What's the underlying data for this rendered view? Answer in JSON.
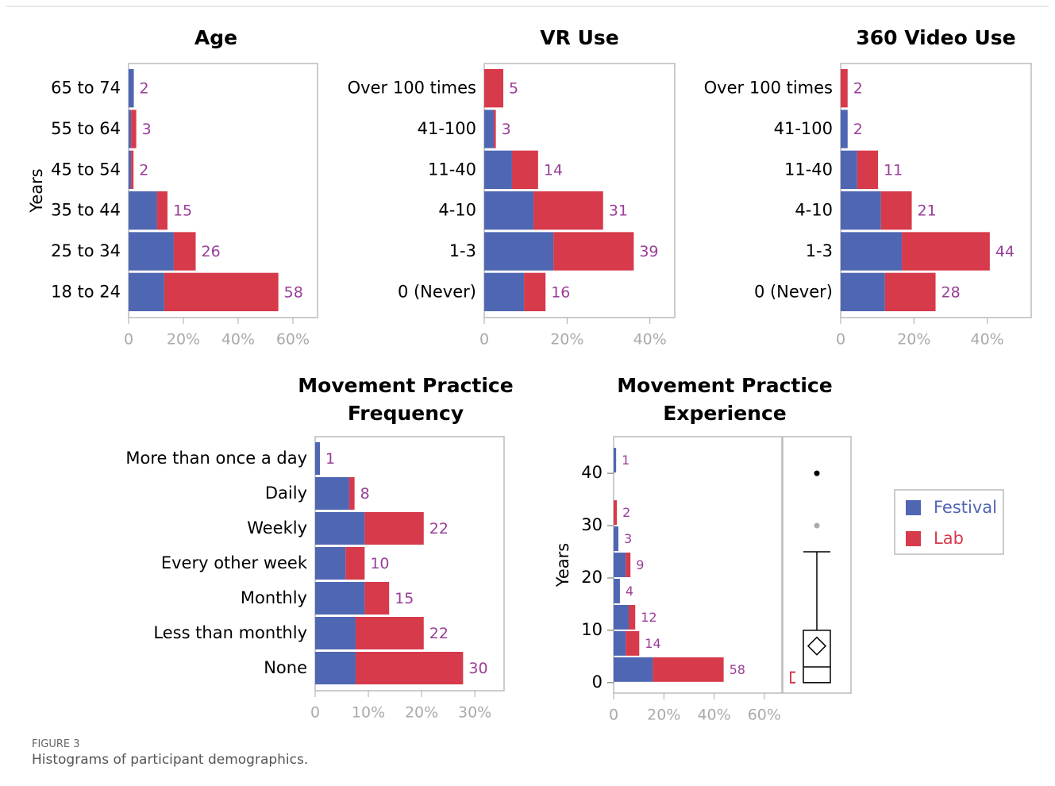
{
  "figure_label": "FIGURE 3",
  "caption": "Histograms of participant demographics.",
  "chart_data": [
    {
      "type": "bar",
      "orientation": "horizontal",
      "stacked": true,
      "title": "Age",
      "ylabel": "Years",
      "categories": [
        "65 to 74",
        "55 to 64",
        "45 to 54",
        "35 to 44",
        "25 to 34",
        "18 to 24"
      ],
      "series": [
        {
          "color": "#4f66b3",
          "values": [
            1.9,
            0.9,
            0.9,
            10.4,
            16.5,
            13
          ]
        },
        {
          "color": "#d63a4b",
          "values": [
            0,
            1.9,
            0.9,
            3.8,
            8,
            41.7
          ]
        }
      ],
      "counts": [
        2,
        3,
        2,
        15,
        26,
        58
      ],
      "label_color": "#9a3e98",
      "xlim": [
        0,
        69
      ],
      "xticks": [
        0,
        {
          "value": 20,
          "label": "20%"
        },
        {
          "value": 40,
          "label": "40%"
        },
        {
          "value": 60,
          "label": "60%"
        }
      ]
    },
    {
      "type": "bar",
      "orientation": "horizontal",
      "stacked": true,
      "title": "VR Use",
      "categories": [
        "Over 100 times",
        "41-100",
        "11-40",
        "4-10",
        "1-3",
        "0 (Never)"
      ],
      "series": [
        {
          "color": "#4f66b3",
          "values": [
            0,
            2.3,
            6.7,
            11.9,
            16.7,
            9.6
          ]
        },
        {
          "color": "#d63a4b",
          "values": [
            4.6,
            0.5,
            6.3,
            16.8,
            19.4,
            5.2
          ]
        }
      ],
      "counts": [
        5,
        3,
        14,
        31,
        39,
        16
      ],
      "label_color": "#9a3e98",
      "xlim": [
        0,
        46
      ],
      "xticks": [
        0,
        {
          "value": 20,
          "label": "20%"
        },
        {
          "value": 40,
          "label": "40%"
        }
      ]
    },
    {
      "type": "bar",
      "orientation": "horizontal",
      "stacked": true,
      "title": "360 Video Use",
      "categories": [
        "Over 100 times",
        "41-100",
        "11-40",
        "4-10",
        "1-3",
        "0 (Never)"
      ],
      "series": [
        {
          "color": "#4f66b3",
          "values": [
            0,
            1.9,
            4.5,
            11,
            16.7,
            12.1
          ]
        },
        {
          "color": "#d63a4b",
          "values": [
            1.9,
            0,
            5.7,
            8.4,
            24,
            13.8
          ]
        }
      ],
      "counts": [
        2,
        2,
        11,
        21,
        44,
        28
      ],
      "label_color": "#9a3e98",
      "xlim": [
        0,
        52
      ],
      "xticks": [
        0,
        {
          "value": 20,
          "label": "20%"
        },
        {
          "value": 40,
          "label": "40%"
        }
      ]
    },
    {
      "type": "bar",
      "orientation": "horizontal",
      "stacked": true,
      "title": "Movement Practice Frequency",
      "categories": [
        "More than once a day",
        "Daily",
        "Weekly",
        "Every other week",
        "Monthly",
        "Less than monthly",
        "None"
      ],
      "series": [
        {
          "color": "#4f66b3",
          "values": [
            0.9,
            6.4,
            9.3,
            5.7,
            9.3,
            7.6,
            7.6
          ]
        },
        {
          "color": "#d63a4b",
          "values": [
            0,
            1,
            11.1,
            3.6,
            4.6,
            12.8,
            20.2
          ]
        }
      ],
      "counts": [
        1,
        8,
        22,
        10,
        15,
        22,
        30
      ],
      "label_color": "#9a3e98",
      "xlim": [
        0,
        35.5
      ],
      "xticks": [
        0,
        {
          "value": 10,
          "label": "10%"
        },
        {
          "value": 20,
          "label": "20%"
        },
        {
          "value": 30,
          "label": "30%"
        }
      ]
    },
    {
      "type": "histogram",
      "orientation": "horizontal",
      "stacked": true,
      "title": "Movement Practice Experience",
      "ylabel": "Years",
      "bins": [
        0,
        5,
        10,
        15,
        20,
        25,
        30,
        35,
        40,
        45
      ],
      "series": [
        {
          "name": "Festival",
          "color": "#4f66b3",
          "values": [
            15.6,
            4.8,
            6,
            2.5,
            4.8,
            1.9,
            0,
            0,
            1
          ]
        },
        {
          "name": "Lab",
          "color": "#d63a4b",
          "values": [
            28.2,
            5.4,
            2.6,
            0,
            1.9,
            0,
            1.3,
            0,
            0
          ]
        }
      ],
      "counts": [
        58,
        14,
        12,
        4,
        9,
        3,
        2,
        null,
        1
      ],
      "label_color": "#9a3e98",
      "xlim": [
        0,
        67
      ],
      "xticks": [
        0,
        {
          "value": 20,
          "label": "20%"
        },
        {
          "value": 40,
          "label": "40%"
        },
        {
          "value": 60,
          "label": "60%"
        }
      ],
      "ylim": [
        -2,
        47
      ],
      "yticks": [
        0,
        10,
        20,
        30,
        40
      ],
      "boxplot": {
        "min": 0,
        "q1": 0,
        "median": 3,
        "q3": 10,
        "max": 25,
        "mean": 7,
        "outliers": [
          30,
          40
        ],
        "outlier_colors": [
          "#aaaaaa",
          "#000000"
        ],
        "shortest_half": [
          0,
          2
        ],
        "shortest_half_color": "#d63a4b"
      },
      "legend": "right"
    }
  ]
}
